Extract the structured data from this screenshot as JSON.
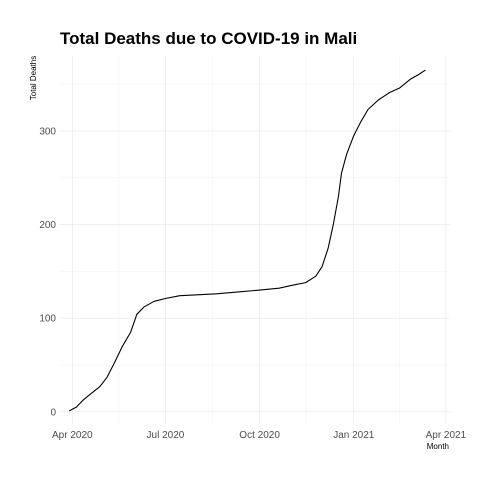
{
  "chart_data": {
    "type": "line",
    "title": "Total Deaths due to COVID-19 in Mali",
    "xlabel": "Month",
    "ylabel": "Total Deaths",
    "grid": true,
    "xlim": [
      "2020-03-20",
      "2021-04-05"
    ],
    "ylim": [
      -13,
      380
    ],
    "x_ticks": [
      {
        "date": "2020-04-01",
        "label": "Apr 2020"
      },
      {
        "date": "2020-07-01",
        "label": "Jul 2020"
      },
      {
        "date": "2020-10-01",
        "label": "Oct 2020"
      },
      {
        "date": "2021-01-01",
        "label": "Jan 2021"
      },
      {
        "date": "2021-04-01",
        "label": "Apr 2021"
      }
    ],
    "y_ticks": [
      0,
      100,
      200,
      300
    ],
    "series": [
      {
        "name": "Total Deaths",
        "color": "#000000",
        "points": [
          {
            "date": "2020-03-29",
            "value": 1
          },
          {
            "date": "2020-04-05",
            "value": 5
          },
          {
            "date": "2020-04-12",
            "value": 13
          },
          {
            "date": "2020-04-20",
            "value": 20
          },
          {
            "date": "2020-04-28",
            "value": 27
          },
          {
            "date": "2020-05-05",
            "value": 37
          },
          {
            "date": "2020-05-12",
            "value": 52
          },
          {
            "date": "2020-05-20",
            "value": 70
          },
          {
            "date": "2020-05-28",
            "value": 85
          },
          {
            "date": "2020-06-03",
            "value": 104
          },
          {
            "date": "2020-06-10",
            "value": 112
          },
          {
            "date": "2020-06-20",
            "value": 118
          },
          {
            "date": "2020-07-01",
            "value": 121
          },
          {
            "date": "2020-07-15",
            "value": 124
          },
          {
            "date": "2020-08-01",
            "value": 125
          },
          {
            "date": "2020-08-20",
            "value": 126
          },
          {
            "date": "2020-09-10",
            "value": 128
          },
          {
            "date": "2020-10-01",
            "value": 130
          },
          {
            "date": "2020-10-20",
            "value": 132
          },
          {
            "date": "2020-11-01",
            "value": 135
          },
          {
            "date": "2020-11-15",
            "value": 138
          },
          {
            "date": "2020-11-25",
            "value": 145
          },
          {
            "date": "2020-12-01",
            "value": 155
          },
          {
            "date": "2020-12-07",
            "value": 175
          },
          {
            "date": "2020-12-12",
            "value": 200
          },
          {
            "date": "2020-12-17",
            "value": 230
          },
          {
            "date": "2020-12-20",
            "value": 255
          },
          {
            "date": "2020-12-25",
            "value": 275
          },
          {
            "date": "2021-01-01",
            "value": 295
          },
          {
            "date": "2021-01-08",
            "value": 310
          },
          {
            "date": "2021-01-15",
            "value": 323
          },
          {
            "date": "2021-01-25",
            "value": 333
          },
          {
            "date": "2021-02-05",
            "value": 341
          },
          {
            "date": "2021-02-15",
            "value": 346
          },
          {
            "date": "2021-02-25",
            "value": 355
          },
          {
            "date": "2021-03-05",
            "value": 360
          },
          {
            "date": "2021-03-12",
            "value": 365
          }
        ]
      }
    ]
  }
}
